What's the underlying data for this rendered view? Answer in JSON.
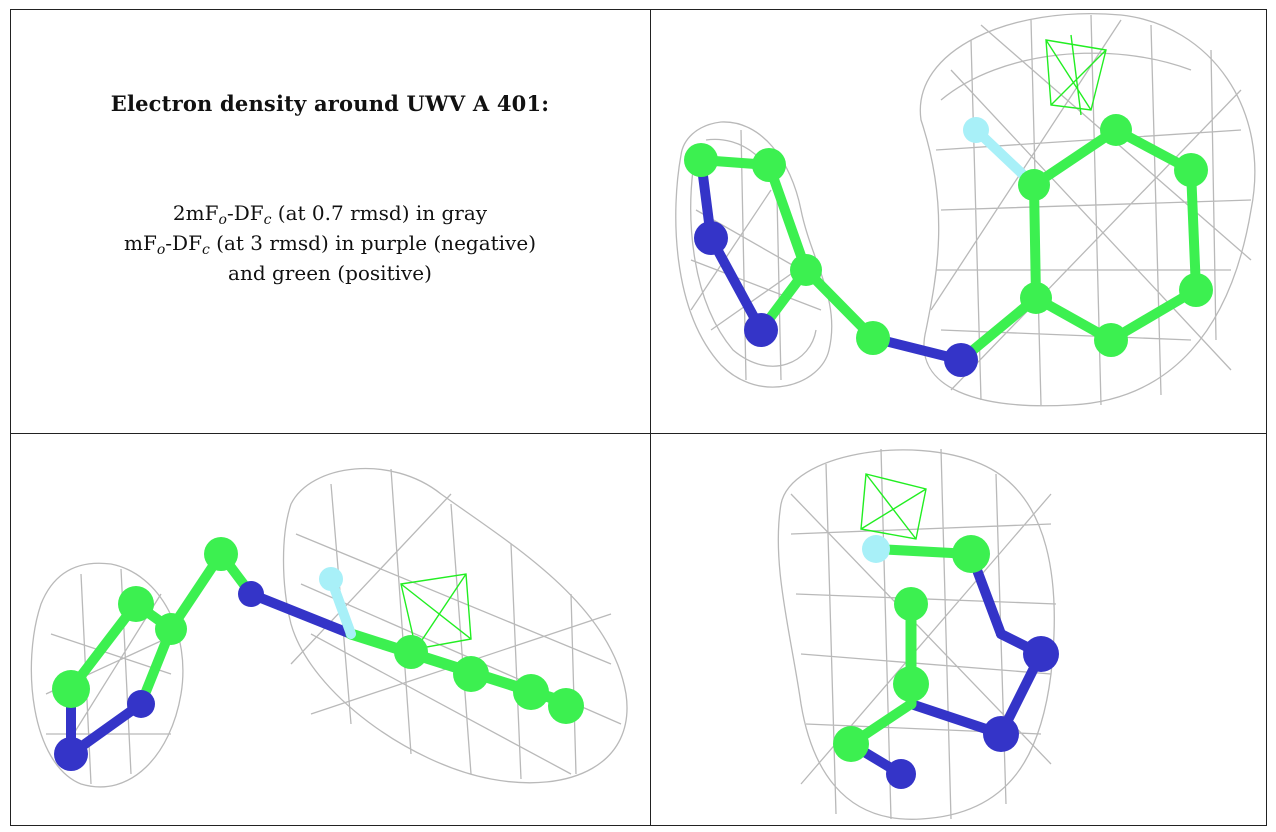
{
  "caption": {
    "title": "Electron density around UWV A 401:",
    "line1_prefix": "2mF",
    "line1_sub1": "o",
    "line1_mid": "-DF",
    "line1_sub2": "c",
    "line1_suffix": " (at 0.7 rmsd) in gray",
    "line2_prefix": "mF",
    "line2_sub1": "o",
    "line2_mid": "-DF",
    "line2_sub2": "c",
    "line2_suffix": " (at 3 rmsd) in purple (negative)",
    "line3": "and green (positive)"
  },
  "colors": {
    "mesh_gray": "#b8b8b8",
    "carbon_green": "#3cf050",
    "nitrogen_blue": "#3434c8",
    "fluorine_cyan": "#a8f0f8",
    "positive_density_green": "#22ee22"
  }
}
